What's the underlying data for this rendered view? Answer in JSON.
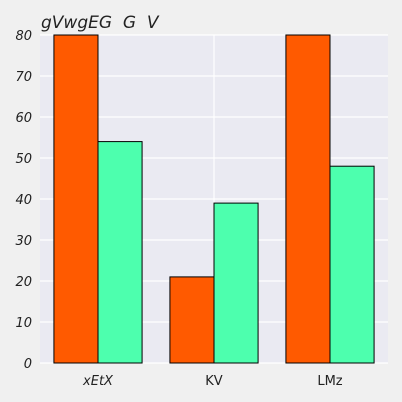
{
  "chart_data": {
    "type": "bar",
    "title": "gVwgEG  G  V",
    "xlabel": "",
    "ylabel": "",
    "categories": [
      "xEtX",
      "KV",
      "LMz"
    ],
    "category_italic": [
      true,
      false,
      false
    ],
    "series": [
      {
        "values": [
          80,
          21,
          80
        ],
        "color": "#ff5a00"
      },
      {
        "values": [
          54,
          39,
          48
        ],
        "color": "#4dffae"
      }
    ],
    "ylim": [
      0,
      80
    ],
    "yticks": [
      0,
      10,
      20,
      30,
      40,
      50,
      60,
      70,
      80
    ],
    "grid": true,
    "legend": "none",
    "colors": {
      "plot_background": "#eaeaf2",
      "grid": "#ffffff",
      "page_background": "#f0f0f0",
      "bar_edge": "#000000"
    }
  }
}
